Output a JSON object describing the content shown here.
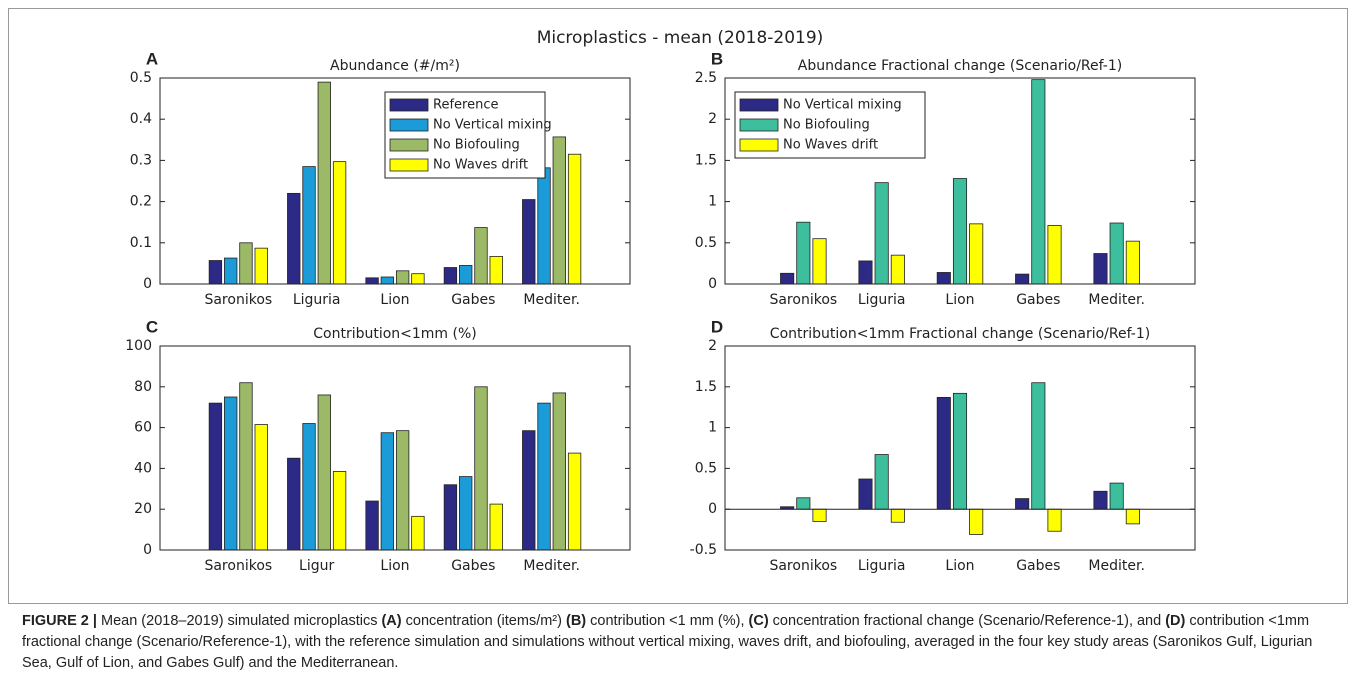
{
  "title": "Microplastics - mean (2018-2019)",
  "chart_data": [
    {
      "type": "bar",
      "panel": "A",
      "title": "Abundance (#/m²)",
      "categories": [
        "Saronikos",
        "Liguria",
        "Lion",
        "Gabes",
        "Mediter."
      ],
      "series": [
        {
          "name": "Reference",
          "color": "#2d2a85",
          "values": [
            0.057,
            0.22,
            0.015,
            0.04,
            0.205
          ]
        },
        {
          "name": "No Vertical mixing",
          "color": "#1b9bd7",
          "values": [
            0.063,
            0.285,
            0.017,
            0.045,
            0.282
          ]
        },
        {
          "name": "No Biofouling",
          "color": "#9bb966",
          "values": [
            0.1,
            0.49,
            0.032,
            0.137,
            0.357
          ]
        },
        {
          "name": "No Waves drift",
          "color": "#ffff00",
          "values": [
            0.087,
            0.297,
            0.025,
            0.067,
            0.315
          ]
        }
      ],
      "ylim": [
        0,
        0.5
      ],
      "yticks": [
        0,
        0.1,
        0.2,
        0.3,
        0.4,
        0.5
      ],
      "legend": "upper right"
    },
    {
      "type": "bar",
      "panel": "B",
      "title": "Abundance Fractional change (Scenario/Ref-1)",
      "categories": [
        "Saronikos",
        "Liguria",
        "Lion",
        "Gabes",
        "Mediter."
      ],
      "series": [
        {
          "name": "No Vertical mixing",
          "color": "#2d2a85",
          "values": [
            0.13,
            0.28,
            0.14,
            0.12,
            0.37
          ]
        },
        {
          "name": "No Biofouling",
          "color": "#3dbf9e",
          "values": [
            0.75,
            1.23,
            1.28,
            2.48,
            0.74
          ]
        },
        {
          "name": "No Waves drift",
          "color": "#ffff00",
          "values": [
            0.55,
            0.35,
            0.73,
            0.71,
            0.52
          ]
        }
      ],
      "ylim": [
        0,
        2.5
      ],
      "yticks": [
        0,
        0.5,
        1,
        1.5,
        2,
        2.5
      ],
      "legend": "upper left"
    },
    {
      "type": "bar",
      "panel": "C",
      "title": "Contribution<1mm (%)",
      "categories": [
        "Saronikos",
        "Ligur",
        "Lion",
        "Gabes",
        "Mediter."
      ],
      "series": [
        {
          "color": "#2d2a85",
          "values": [
            72,
            45,
            24,
            32,
            58.5
          ]
        },
        {
          "color": "#1b9bd7",
          "values": [
            75,
            62,
            57.5,
            36,
            72
          ]
        },
        {
          "color": "#9bb966",
          "values": [
            82,
            76,
            58.5,
            80,
            77
          ]
        },
        {
          "color": "#ffff00",
          "values": [
            61.5,
            38.5,
            16.5,
            22.5,
            47.5
          ]
        }
      ],
      "ylim": [
        0,
        100
      ],
      "yticks": [
        0,
        20,
        40,
        60,
        80,
        100
      ]
    },
    {
      "type": "bar",
      "panel": "D",
      "title": "Contribution<1mm Fractional change (Scenario/Ref-1)",
      "categories": [
        "Saronikos",
        "Liguria",
        "Lion",
        "Gabes",
        "Mediter."
      ],
      "series": [
        {
          "color": "#2d2a85",
          "values": [
            0.03,
            0.37,
            1.37,
            0.13,
            0.22
          ]
        },
        {
          "color": "#3dbf9e",
          "values": [
            0.14,
            0.67,
            1.42,
            1.55,
            0.32
          ]
        },
        {
          "color": "#ffff00",
          "values": [
            -0.15,
            -0.16,
            -0.31,
            -0.27,
            -0.18
          ]
        }
      ],
      "ylim": [
        -0.5,
        2
      ],
      "yticks": [
        -0.5,
        0,
        0.5,
        1,
        1.5,
        2
      ]
    }
  ],
  "caption": [
    {
      "text": "FIGURE 2 |",
      "bold": true
    },
    {
      "text": " Mean (2018–2019) simulated microplastics "
    },
    {
      "text": "(A)",
      "bold": true
    },
    {
      "text": " concentration (items/m²) "
    },
    {
      "text": "(B)",
      "bold": true
    },
    {
      "text": " contribution <1 mm (%), "
    },
    {
      "text": "(C)",
      "bold": true
    },
    {
      "text": " concentration fractional change (Scenario/Reference-1), and "
    },
    {
      "text": "(D)",
      "bold": true
    },
    {
      "text": " contribution <1mm fractional change (Scenario/Reference-1), with the reference simulation and simulations without vertical mixing, waves drift, and biofouling, averaged in the four key study areas (Saronikos Gulf, Ligurian Sea, Gulf of Lion, and Gabes Gulf) and the Mediterranean."
    }
  ]
}
